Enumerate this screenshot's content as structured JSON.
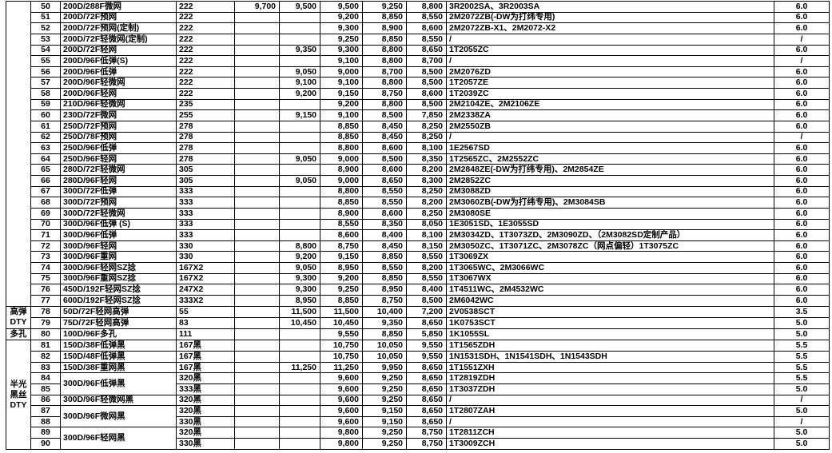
{
  "colors": {
    "text": "#000000",
    "border": "#000000",
    "background": "#ffffff"
  },
  "table": {
    "groups": [
      {
        "lines": [
          ""
        ],
        "span": 28
      },
      {
        "lines": [
          "高弹",
          "DTY"
        ],
        "span": 2
      },
      {
        "lines": [
          "多孔"
        ],
        "span": 1
      },
      {
        "lines": [
          "半光",
          "黑丝",
          "DTY"
        ],
        "span": 10
      }
    ],
    "rows": [
      {
        "no": "50",
        "name": "200D/288F微网",
        "spec": "222",
        "p1": "9,700",
        "p2": "9,500",
        "p3": "9,500",
        "p4": "9,250",
        "p5": "8,800",
        "code": "3R2002SA、3R2003SA",
        "grade": "6.0"
      },
      {
        "no": "51",
        "name": "200D/72F预网",
        "spec": "222",
        "p3": "9,200",
        "p4": "8,850",
        "p5": "8,550",
        "code": "2M2072ZB(-DW为打纬专用)",
        "grade": "6.0"
      },
      {
        "no": "52",
        "name": "200D/72F预网(定制)",
        "spec": "222",
        "p3": "9,300",
        "p4": "8,900",
        "p5": "8,600",
        "code": "2M2072ZB-X1、2M2072-X2",
        "grade": "6.0"
      },
      {
        "no": "53",
        "name": "200D/72F轻微网(定制)",
        "spec": "222",
        "p3": "9,250",
        "p4": "8,850",
        "p5": "8,550",
        "code": "/",
        "grade": "/"
      },
      {
        "no": "54",
        "name": "200D/72F轻网",
        "spec": "222",
        "p2": "9,350",
        "p3": "9,300",
        "p4": "8,800",
        "p5": "8,650",
        "code": "1T2055ZC",
        "grade": "6.0"
      },
      {
        "no": "55",
        "name": "200D/96F低弹(S)",
        "spec": "222",
        "p3": "9,100",
        "p4": "8,800",
        "p5": "8,700",
        "code": "/",
        "grade": "/"
      },
      {
        "no": "56",
        "name": "200D/96F低弹",
        "spec": "222",
        "p2": "9,050",
        "p3": "9,000",
        "p4": "8,700",
        "p5": "8,500",
        "code": "2M2076ZD",
        "grade": "6.0"
      },
      {
        "no": "57",
        "name": "200D/96F轻微网",
        "spec": "222",
        "p2": "9,100",
        "p3": "9,100",
        "p4": "8,800",
        "p5": "8,500",
        "code": "1T2057ZE",
        "grade": "6.0"
      },
      {
        "no": "58",
        "name": "200D/96F轻网",
        "spec": "222",
        "p2": "9,200",
        "p3": "9,150",
        "p4": "8,750",
        "p5": "8,600",
        "code": "1T2039ZC",
        "grade": "6.0"
      },
      {
        "no": "59",
        "name": "210D/96F轻微网",
        "spec": "235",
        "p3": "9,200",
        "p4": "8,800",
        "p5": "8,500",
        "code": "2M2104ZE、2M2106ZE",
        "grade": "6.0"
      },
      {
        "no": "60",
        "name": "230D/72F微网",
        "spec": "255",
        "p2": "9,150",
        "p3": "9,100",
        "p4": "8,500",
        "p5": "7,850",
        "code": "2M2338ZA",
        "grade": "6.0"
      },
      {
        "no": "61",
        "name": "250D/72F预网",
        "spec": "278",
        "p3": "8,850",
        "p4": "8,450",
        "p5": "8,250",
        "code": "2M2550ZB",
        "grade": "6.0"
      },
      {
        "no": "62",
        "name": "250D/78F预网",
        "spec": "278",
        "p3": "8,850",
        "p4": "8,450",
        "p5": "8,250",
        "code": "/",
        "grade": "/"
      },
      {
        "no": "63",
        "name": "250D/96F低弹",
        "spec": "278",
        "p3": "8,800",
        "p4": "8,600",
        "p5": "8,100",
        "code": "1E2567SD",
        "grade": "6.0"
      },
      {
        "no": "64",
        "name": "250D/96F轻网",
        "spec": "278",
        "p2": "9,050",
        "p3": "9,000",
        "p4": "8,500",
        "p5": "8,350",
        "code": "1T2565ZC、2M2552ZC",
        "grade": "6.0"
      },
      {
        "no": "65",
        "name": "280D/72F轻微网",
        "spec": "305",
        "p3": "8,900",
        "p4": "8,600",
        "p5": "8,200",
        "code": "2M2848ZE(-DW为打纬专用)、2M2854ZE",
        "grade": "6.0"
      },
      {
        "no": "66",
        "name": "280D/96F轻网",
        "spec": "305",
        "p2": "9,050",
        "p3": "9,000",
        "p4": "8,650",
        "p5": "8,300",
        "code": "2M2852ZC",
        "grade": "6.0"
      },
      {
        "no": "67",
        "name": "300D/72F低弹",
        "spec": "333",
        "p3": "8,800",
        "p4": "8,550",
        "p5": "8,250",
        "code": "2M3088ZD",
        "grade": "6.0"
      },
      {
        "no": "68",
        "name": "300D/72F预网",
        "spec": "333",
        "p3": "8,850",
        "p4": "8,550",
        "p5": "8,200",
        "code": "2M3060ZB(-DW为打纬专用)、2M3084SB",
        "grade": "6.0"
      },
      {
        "no": "69",
        "name": "300D/72F轻微网",
        "spec": "333",
        "p3": "8,900",
        "p4": "8,600",
        "p5": "8,250",
        "code": "2M3080SE",
        "grade": "6.0"
      },
      {
        "no": "70",
        "name": "300D/96F低弹 (S)",
        "spec": "333",
        "p3": "8,550",
        "p4": "8,350",
        "p5": "8,050",
        "code": "1E3051SD、1E3055SD",
        "grade": "6.0"
      },
      {
        "no": "71",
        "name": "300D/96F低弹",
        "spec": "333",
        "p3": "8,600",
        "p4": "8,400",
        "p5": "8,100",
        "code": "2M3034ZD、1T3073ZD、2M3090ZD、（2M3082SD定制产品）",
        "grade": "6.0"
      },
      {
        "no": "72",
        "name": "300D/96F轻网",
        "spec": "330",
        "p2": "8,800",
        "p3": "8,750",
        "p4": "8,450",
        "p5": "8,150",
        "code": "2M3050ZC、1T3071ZC、2M3078ZC（网点偏轻）1T3075ZC",
        "grade": "6.0"
      },
      {
        "no": "73",
        "name": "300D/96F重网",
        "spec": "330",
        "p2": "9,200",
        "p3": "9,150",
        "p4": "8,850",
        "p5": "8,550",
        "code": "1T3069ZX",
        "grade": "6.0"
      },
      {
        "no": "74",
        "name": "300D/96F轻网SZ捻",
        "spec": "167X2",
        "p2": "9,050",
        "p3": "8,950",
        "p4": "8,550",
        "p5": "8,200",
        "code": "1T3065WC、2M3066WC",
        "grade": "6.0"
      },
      {
        "no": "75",
        "name": "300D/96F重网SZ捻",
        "spec": "167X2",
        "p2": "9,300",
        "p3": "9,200",
        "p4": "8,850",
        "p5": "8,550",
        "code": "1T3067WX",
        "grade": "6.0"
      },
      {
        "no": "76",
        "name": "450D/192F轻网SZ捻",
        "spec": "247X2",
        "p2": "9,300",
        "p3": "9,250",
        "p4": "8,950",
        "p5": "8,400",
        "code": "1T4511WC、2M4532WC",
        "grade": "6.0"
      },
      {
        "no": "77",
        "name": "600D/192F轻网SZ捻",
        "spec": "333X2",
        "p2": "8,950",
        "p3": "8,850",
        "p4": "8,750",
        "p5": "8,500",
        "code": "2M6042WC",
        "grade": "6.0"
      },
      {
        "no": "78",
        "name": "50D/72F轻网高弹",
        "spec": "55",
        "p2": "11,500",
        "p3": "11,500",
        "p4": "10,400",
        "p5": "7,200",
        "code": "2V0538SCT",
        "grade": "3.5"
      },
      {
        "no": "79",
        "name": "75D/72F轻网高弹",
        "spec": "83",
        "p2": "10,450",
        "p3": "10,450",
        "p4": "9,350",
        "p5": "8,650",
        "code": "1K0753SCT",
        "grade": "5.0"
      },
      {
        "no": "80",
        "name": "100D/96F多孔",
        "spec": "111",
        "p3": "9,550",
        "p4": "8,850",
        "p5": "5,850",
        "code": "1K1055SL",
        "grade": "5.0"
      },
      {
        "no": "81",
        "name": "150D/38F低弹黑",
        "spec": "167黑",
        "p3": "10,750",
        "p4": "10,050",
        "p5": "9,550",
        "code": "1T1565ZDH",
        "grade": "5.5"
      },
      {
        "no": "82",
        "name": "150D/48F低弹黑",
        "spec": "167黑",
        "p3": "10,750",
        "p4": "10,050",
        "p5": "9,550",
        "code": "1N1531SDH、1N1541SDH、1N1543SDH",
        "grade": "5.5"
      },
      {
        "no": "83",
        "name": "150D/38F重网黑",
        "spec": "167黑",
        "p2": "11,250",
        "p3": "11,250",
        "p4": "9,950",
        "p5": "8,650",
        "code": "1T1551ZXH",
        "grade": "5.5"
      },
      {
        "no": "84",
        "name": "300D/96F低弹黑",
        "name_span": 2,
        "spec": "320黑",
        "p3": "9,600",
        "p4": "9,250",
        "p5": "8,650",
        "code": "1T2819ZDH",
        "grade": "5.5"
      },
      {
        "no": "85",
        "name_skip": true,
        "spec": "333黑",
        "p3": "9,600",
        "p4": "9,250",
        "p5": "8,650",
        "code": "1T3037ZDH",
        "grade": "5.0"
      },
      {
        "no": "86",
        "name": "300D/96F轻微网黑",
        "spec": "320黑",
        "p3": "9,600",
        "p4": "9,250",
        "p5": "8,650",
        "code": "/",
        "grade": "/"
      },
      {
        "no": "87",
        "name": "300D/96F微网黑",
        "name_span": 2,
        "spec": "320黑",
        "p3": "9,600",
        "p4": "9,150",
        "p5": "8,650",
        "code": "1T2807ZAH",
        "grade": "5.0"
      },
      {
        "no": "88",
        "name_skip": true,
        "spec": "330黑",
        "p3": "9,600",
        "p4": "9,150",
        "p5": "8,650",
        "code": "/",
        "grade": "/"
      },
      {
        "no": "89",
        "name": "300D/96F轻网黑",
        "name_span": 2,
        "spec": "320黑",
        "p3": "9,800",
        "p4": "9,250",
        "p5": "8,750",
        "code": "1T2811ZCH",
        "grade": "5.0"
      },
      {
        "no": "90",
        "name_skip": true,
        "spec": "330黑",
        "p3": "9,800",
        "p4": "9,250",
        "p5": "8,750",
        "code": "1T3009ZCH",
        "grade": "5.0"
      }
    ]
  }
}
